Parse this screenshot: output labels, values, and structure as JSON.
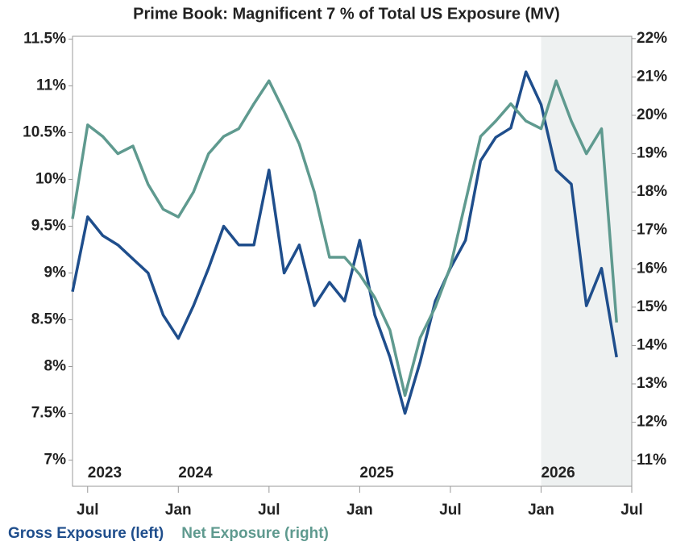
{
  "chart_data": {
    "type": "line",
    "title": "Prime Book: Magnificent 7 % of Total US Exposure (MV)",
    "x": [
      "2023-06",
      "2023-07",
      "2023-08",
      "2023-09",
      "2023-10",
      "2023-11",
      "2023-12",
      "2024-01",
      "2024-02",
      "2024-03",
      "2024-04",
      "2024-05",
      "2024-06",
      "2024-07",
      "2024-08",
      "2024-09",
      "2024-10",
      "2024-11",
      "2024-12",
      "2025-01",
      "2025-02",
      "2025-03",
      "2025-04",
      "2025-05",
      "2025-06",
      "2025-07",
      "2025-08",
      "2025-09",
      "2025-10",
      "2025-11",
      "2025-12",
      "2026-01",
      "2026-02",
      "2026-03",
      "2026-04",
      "2026-05",
      "2026-06"
    ],
    "series": [
      {
        "name": "Gross Exposure (left)",
        "color": "#1f4e8c",
        "axis": "y",
        "values": [
          8.8,
          9.6,
          9.4,
          9.3,
          9.15,
          9.0,
          8.55,
          8.3,
          8.65,
          9.05,
          9.5,
          9.3,
          9.3,
          10.1,
          9.0,
          9.3,
          8.65,
          8.9,
          8.7,
          9.35,
          8.55,
          8.1,
          7.5,
          8.05,
          8.7,
          9.05,
          9.35,
          10.2,
          10.45,
          10.55,
          11.15,
          10.8,
          10.1,
          9.95,
          8.65,
          9.05,
          8.1
        ]
      },
      {
        "name": "Net Exposure (right)",
        "color": "#5f9a8f",
        "axis": "y2",
        "values": [
          17.3,
          19.75,
          19.45,
          19.0,
          19.2,
          18.2,
          17.55,
          17.35,
          18.0,
          19.0,
          19.45,
          19.65,
          20.3,
          20.9,
          20.1,
          19.25,
          18.0,
          16.3,
          16.3,
          15.85,
          15.25,
          14.4,
          12.7,
          14.2,
          15.0,
          16.05,
          17.75,
          19.45,
          19.85,
          20.3,
          19.85,
          19.65,
          20.9,
          19.85,
          19.0,
          19.65,
          14.6
        ]
      }
    ],
    "xlim": [
      "2023-06",
      "2026-07"
    ],
    "xticks": [
      {
        "value": "2023-07",
        "label": "Jul"
      },
      {
        "value": "2024-01",
        "label": "Jan"
      },
      {
        "value": "2024-07",
        "label": "Jul"
      },
      {
        "value": "2025-01",
        "label": "Jan"
      },
      {
        "value": "2025-07",
        "label": "Jul"
      },
      {
        "value": "2026-01",
        "label": "Jan"
      },
      {
        "value": "2026-07",
        "label": "Jul"
      }
    ],
    "year_labels": [
      {
        "value": "2023-07",
        "label": "2023"
      },
      {
        "value": "2024-01",
        "label": "2024"
      },
      {
        "value": "2025-01",
        "label": "2025"
      },
      {
        "value": "2026-01",
        "label": "2026"
      }
    ],
    "shaded_region": [
      "2026-01",
      "2026-07"
    ],
    "ylim": [
      6.72,
      11.53
    ],
    "yticks": [
      {
        "value": 7,
        "label": "7%"
      },
      {
        "value": 7.5,
        "label": "7.5%"
      },
      {
        "value": 8,
        "label": "8%"
      },
      {
        "value": 8.5,
        "label": "8.5%"
      },
      {
        "value": 9,
        "label": "9%"
      },
      {
        "value": 9.5,
        "label": "9.5%"
      },
      {
        "value": 10,
        "label": "10%"
      },
      {
        "value": 10.5,
        "label": "10.5%"
      },
      {
        "value": 11,
        "label": "11%"
      },
      {
        "value": 11.5,
        "label": "11.5%"
      }
    ],
    "y2lim": [
      10.33,
      22.06
    ],
    "y2ticks": [
      {
        "value": 11,
        "label": "11%"
      },
      {
        "value": 12,
        "label": "12%"
      },
      {
        "value": 13,
        "label": "13%"
      },
      {
        "value": 14,
        "label": "14%"
      },
      {
        "value": 15,
        "label": "15%"
      },
      {
        "value": 16,
        "label": "16%"
      },
      {
        "value": 17,
        "label": "17%"
      },
      {
        "value": 18,
        "label": "18%"
      },
      {
        "value": 19,
        "label": "19%"
      },
      {
        "value": 20,
        "label": "20%"
      },
      {
        "value": 21,
        "label": "21%"
      },
      {
        "value": 22,
        "label": "22%"
      }
    ],
    "grid": false
  }
}
